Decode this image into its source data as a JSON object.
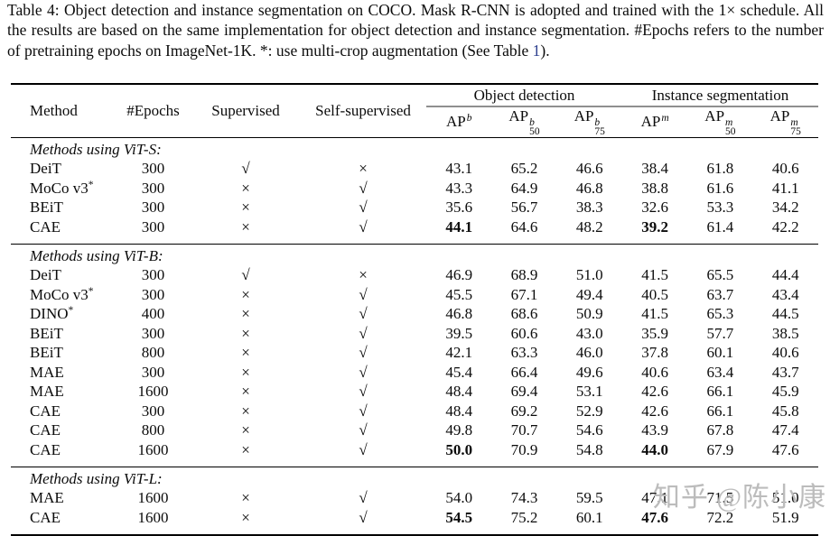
{
  "caption": {
    "text_before_link": "Table 4: Object detection and instance segmentation on COCO. Mask R-CNN is adopted and trained with the 1× schedule. All the results are based on the same implementation for object detection and instance segmentation. #Epochs refers to the number of pretraining epochs on ImageNet-1K. *: use multi-crop augmentation (See Table ",
    "link_text": "1",
    "text_after_link": ")."
  },
  "link_color": "#2e3f8f",
  "table": {
    "columns": [
      "Method",
      "#Epochs",
      "Supervised",
      "Self-supervised"
    ],
    "groups": [
      {
        "label": "Object detection",
        "metrics": [
          {
            "base": "AP",
            "sup": "b",
            "sub": ""
          },
          {
            "base": "AP",
            "sup": "b",
            "sub": "50"
          },
          {
            "base": "AP",
            "sup": "b",
            "sub": "75"
          }
        ]
      },
      {
        "label": "Instance segmentation",
        "metrics": [
          {
            "base": "AP",
            "sup": "m",
            "sub": ""
          },
          {
            "base": "AP",
            "sup": "m",
            "sub": "50"
          },
          {
            "base": "AP",
            "sup": "m",
            "sub": "75"
          }
        ]
      }
    ],
    "marks": {
      "check": "√",
      "cross": "×"
    },
    "sections": [
      {
        "label": "Methods using ViT-S:",
        "rows": [
          {
            "method": "DeiT",
            "method_sup": "",
            "epochs": "300",
            "supervised": "check",
            "self_supervised": "cross",
            "values": [
              "43.1",
              "65.2",
              "46.6",
              "38.4",
              "61.8",
              "40.6"
            ],
            "bold": []
          },
          {
            "method": "MoCo v3",
            "method_sup": "*",
            "epochs": "300",
            "supervised": "cross",
            "self_supervised": "check",
            "values": [
              "43.3",
              "64.9",
              "46.8",
              "38.8",
              "61.6",
              "41.1"
            ],
            "bold": []
          },
          {
            "method": "BEiT",
            "method_sup": "",
            "epochs": "300",
            "supervised": "cross",
            "self_supervised": "check",
            "values": [
              "35.6",
              "56.7",
              "38.3",
              "32.6",
              "53.3",
              "34.2"
            ],
            "bold": []
          },
          {
            "method": "CAE",
            "method_sup": "",
            "epochs": "300",
            "supervised": "cross",
            "self_supervised": "check",
            "values": [
              "44.1",
              "64.6",
              "48.2",
              "39.2",
              "61.4",
              "42.2"
            ],
            "bold": [
              0,
              3
            ]
          }
        ]
      },
      {
        "label": "Methods using ViT-B:",
        "rows": [
          {
            "method": "DeiT",
            "method_sup": "",
            "epochs": "300",
            "supervised": "check",
            "self_supervised": "cross",
            "values": [
              "46.9",
              "68.9",
              "51.0",
              "41.5",
              "65.5",
              "44.4"
            ],
            "bold": []
          },
          {
            "method": "MoCo v3",
            "method_sup": "*",
            "epochs": "300",
            "supervised": "cross",
            "self_supervised": "check",
            "values": [
              "45.5",
              "67.1",
              "49.4",
              "40.5",
              "63.7",
              "43.4"
            ],
            "bold": []
          },
          {
            "method": "DINO",
            "method_sup": "*",
            "epochs": "400",
            "supervised": "cross",
            "self_supervised": "check",
            "values": [
              "46.8",
              "68.6",
              "50.9",
              "41.5",
              "65.3",
              "44.5"
            ],
            "bold": []
          },
          {
            "method": "BEiT",
            "method_sup": "",
            "epochs": "300",
            "supervised": "cross",
            "self_supervised": "check",
            "values": [
              "39.5",
              "60.6",
              "43.0",
              "35.9",
              "57.7",
              "38.5"
            ],
            "bold": []
          },
          {
            "method": "BEiT",
            "method_sup": "",
            "epochs": "800",
            "supervised": "cross",
            "self_supervised": "check",
            "values": [
              "42.1",
              "63.3",
              "46.0",
              "37.8",
              "60.1",
              "40.6"
            ],
            "bold": []
          },
          {
            "method": "MAE",
            "method_sup": "",
            "epochs": "300",
            "supervised": "cross",
            "self_supervised": "check",
            "values": [
              "45.4",
              "66.4",
              "49.6",
              "40.6",
              "63.4",
              "43.7"
            ],
            "bold": []
          },
          {
            "method": "MAE",
            "method_sup": "",
            "epochs": "1600",
            "supervised": "cross",
            "self_supervised": "check",
            "values": [
              "48.4",
              "69.4",
              "53.1",
              "42.6",
              "66.1",
              "45.9"
            ],
            "bold": []
          },
          {
            "method": "CAE",
            "method_sup": "",
            "epochs": "300",
            "supervised": "cross",
            "self_supervised": "check",
            "values": [
              "48.4",
              "69.2",
              "52.9",
              "42.6",
              "66.1",
              "45.8"
            ],
            "bold": []
          },
          {
            "method": "CAE",
            "method_sup": "",
            "epochs": "800",
            "supervised": "cross",
            "self_supervised": "check",
            "values": [
              "49.8",
              "70.7",
              "54.6",
              "43.9",
              "67.8",
              "47.4"
            ],
            "bold": []
          },
          {
            "method": "CAE",
            "method_sup": "",
            "epochs": "1600",
            "supervised": "cross",
            "self_supervised": "check",
            "values": [
              "50.0",
              "70.9",
              "54.8",
              "44.0",
              "67.9",
              "47.6"
            ],
            "bold": [
              0,
              3
            ]
          }
        ]
      },
      {
        "label": "Methods using ViT-L:",
        "rows": [
          {
            "method": "MAE",
            "method_sup": "",
            "epochs": "1600",
            "supervised": "cross",
            "self_supervised": "check",
            "values": [
              "54.0",
              "74.3",
              "59.5",
              "47.1",
              "71.5",
              "51.0"
            ],
            "bold": []
          },
          {
            "method": "CAE",
            "method_sup": "",
            "epochs": "1600",
            "supervised": "cross",
            "self_supervised": "check",
            "values": [
              "54.5",
              "75.2",
              "60.1",
              "47.6",
              "72.2",
              "51.9"
            ],
            "bold": [
              0,
              3
            ]
          }
        ]
      }
    ]
  },
  "watermark": {
    "text": "知乎 @陈小康",
    "color": "#bcbcbc"
  }
}
